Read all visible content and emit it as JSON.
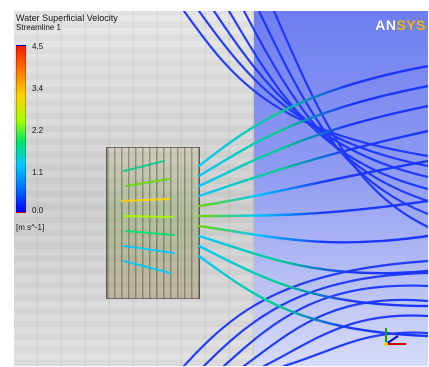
{
  "viewer": {
    "legend": {
      "title": "Water Superficial Velocity",
      "subtitle": "Streamline 1",
      "ticks": [
        "4.5",
        "3.4",
        "2.2",
        "1.1",
        "0.0"
      ],
      "unit": "[m s^-1]",
      "colors": {
        "max": "#ff1a00",
        "mid": "#00e36c",
        "min": "#0000ff"
      }
    },
    "logo": {
      "main": "AN",
      "accent": "SYS"
    },
    "axis_icon": "triad-icon"
  }
}
